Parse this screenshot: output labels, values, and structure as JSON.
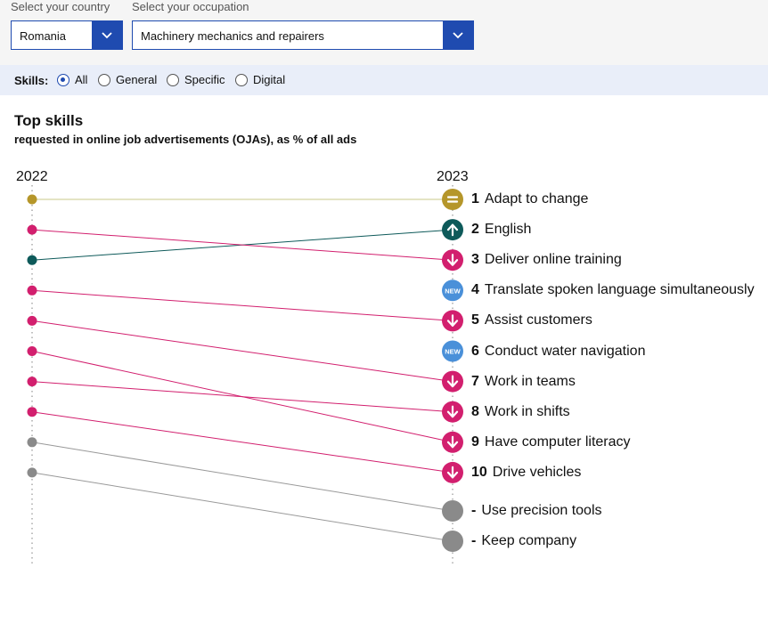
{
  "filters": {
    "country_label": "Select your country",
    "country_value": "Romania",
    "occupation_label": "Select your occupation",
    "occupation_value": "Machinery mechanics and repairers"
  },
  "skills_filter": {
    "label": "Skills:",
    "options": [
      {
        "label": "All",
        "selected": true
      },
      {
        "label": "General",
        "selected": false
      },
      {
        "label": "Specific",
        "selected": false
      },
      {
        "label": "Digital",
        "selected": false
      }
    ]
  },
  "chart": {
    "title": "Top skills",
    "subtitle": "requested in online job advertisements (OJAs), as % of all ads",
    "year_left": "2022",
    "year_right": "2023"
  },
  "colors": {
    "accent_blue": "#1f4bb0",
    "same": "#b5962a",
    "up": "#0e5a5a",
    "down": "#d21f6e",
    "new": "#4a90d9",
    "dropped": "#8a8a8a"
  },
  "chart_data": {
    "type": "slope",
    "rank_2022_slots": 10,
    "items": [
      {
        "skill": "Adapt to change",
        "rank_2023": "1",
        "rank_2022": 1,
        "status": "same"
      },
      {
        "skill": "English",
        "rank_2023": "2",
        "rank_2022": 3,
        "status": "up"
      },
      {
        "skill": "Deliver online training",
        "rank_2023": "3",
        "rank_2022": 2,
        "status": "down"
      },
      {
        "skill": "Translate spoken language simultaneously",
        "rank_2023": "4",
        "rank_2022": null,
        "status": "new"
      },
      {
        "skill": "Assist customers",
        "rank_2023": "5",
        "rank_2022": 4,
        "status": "down"
      },
      {
        "skill": "Conduct water navigation",
        "rank_2023": "6",
        "rank_2022": null,
        "status": "new"
      },
      {
        "skill": "Work in teams",
        "rank_2023": "7",
        "rank_2022": 5,
        "status": "down"
      },
      {
        "skill": "Work in shifts",
        "rank_2023": "8",
        "rank_2022": 7,
        "status": "down"
      },
      {
        "skill": "Have computer literacy",
        "rank_2023": "9",
        "rank_2022": 6,
        "status": "down"
      },
      {
        "skill": "Drive vehicles",
        "rank_2023": "10",
        "rank_2022": 8,
        "status": "down"
      },
      {
        "skill": "Use precision tools",
        "rank_2023": "-",
        "rank_2022": 9,
        "status": "dropped"
      },
      {
        "skill": "Keep company",
        "rank_2023": "-",
        "rank_2022": 10,
        "status": "dropped"
      }
    ],
    "badges": {
      "new": "NEW"
    }
  }
}
